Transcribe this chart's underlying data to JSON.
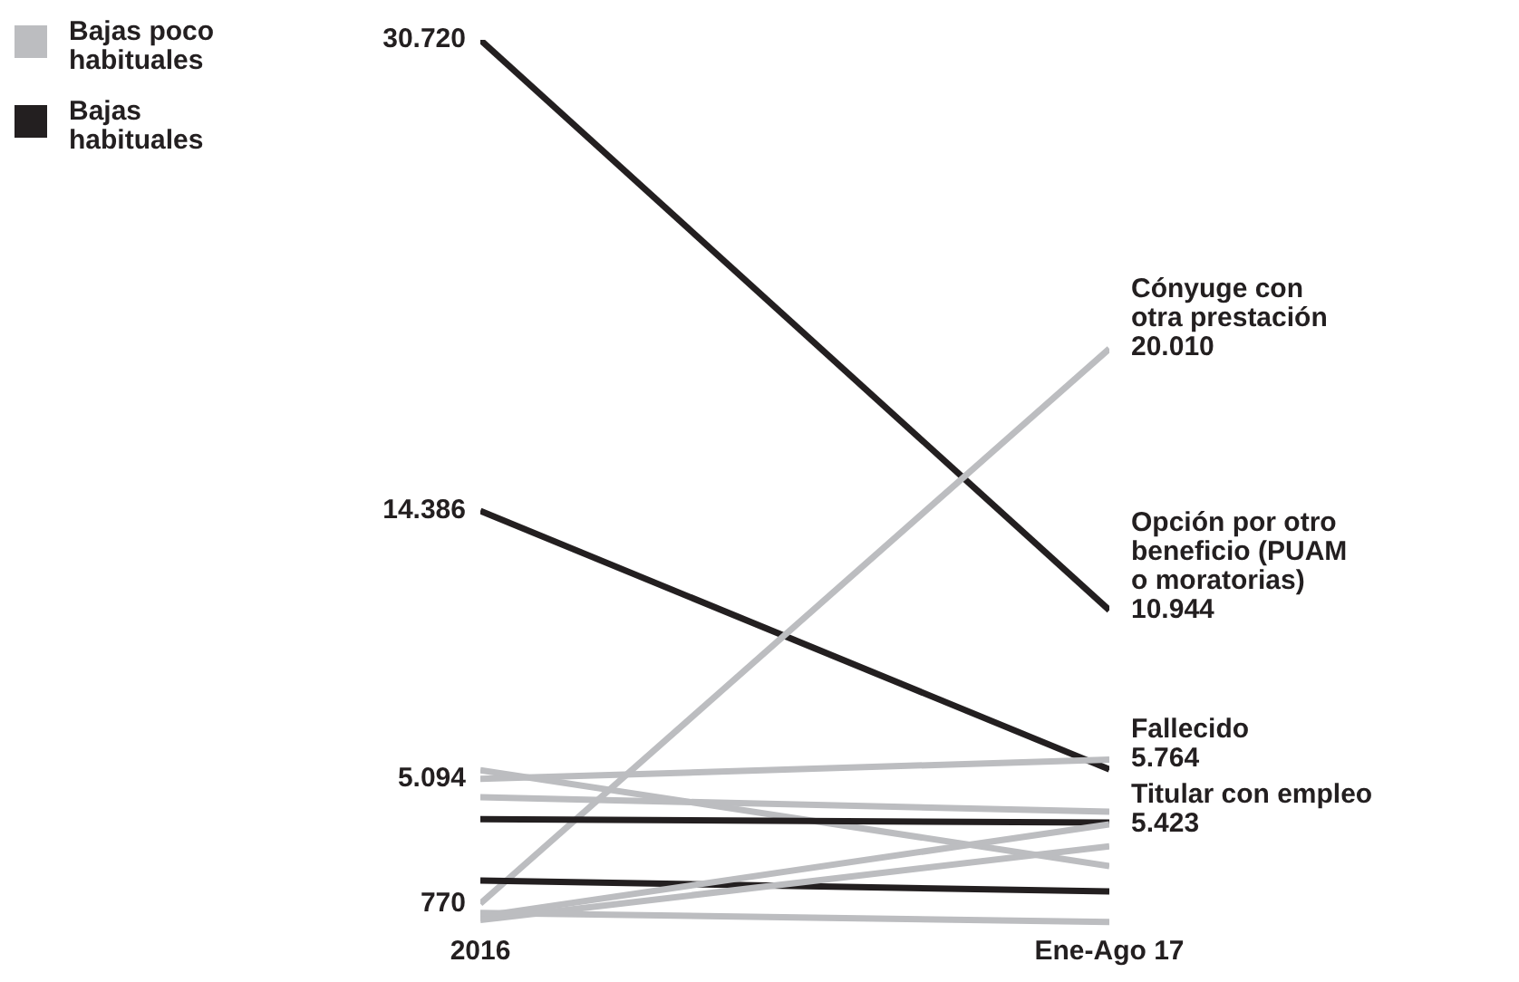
{
  "chart_data": {
    "type": "line",
    "categories": [
      "2016",
      "Ene-Ago 17"
    ],
    "legend": "top left",
    "series": [
      {
        "name": "Bajas habituales",
        "color": "#231f20",
        "values": [
          30720,
          10944
        ],
        "value_labels": [
          "30.720",
          "Opción por otro\nbeneficio (PUAM\no moratorias)\n10.944"
        ]
      },
      {
        "color": "#231f20",
        "values": [
          14386,
          5423
        ],
        "value_labels": [
          "14.386",
          "Titular con empleo\n5.423"
        ]
      },
      {
        "name": "Bajas poco habituales",
        "color": "#bcbdc0",
        "values": [
          770,
          20010
        ],
        "value_labels": [
          "770",
          "Cónyuge con\notra prestación\n20.010"
        ]
      },
      {
        "color": "#bcbdc0",
        "values": [
          5094,
          5764
        ],
        "value_labels": [
          "5.094",
          "Fallecido\n5.764"
        ]
      },
      {
        "color": "#bcbdc0",
        "values": [
          5400,
          2070
        ]
      },
      {
        "color": "#bcbdc0",
        "values": [
          4460,
          3960
        ]
      },
      {
        "color": "#231f20",
        "values": [
          3700,
          3580
        ]
      },
      {
        "color": "#231f20",
        "values": [
          1570,
          1190
        ]
      },
      {
        "color": "#bcbdc0",
        "values": [
          330,
          3520
        ]
      },
      {
        "color": "#bcbdc0",
        "values": [
          200,
          2760
        ]
      },
      {
        "color": "#bcbdc0",
        "values": [
          450,
          130
        ]
      }
    ]
  }
}
